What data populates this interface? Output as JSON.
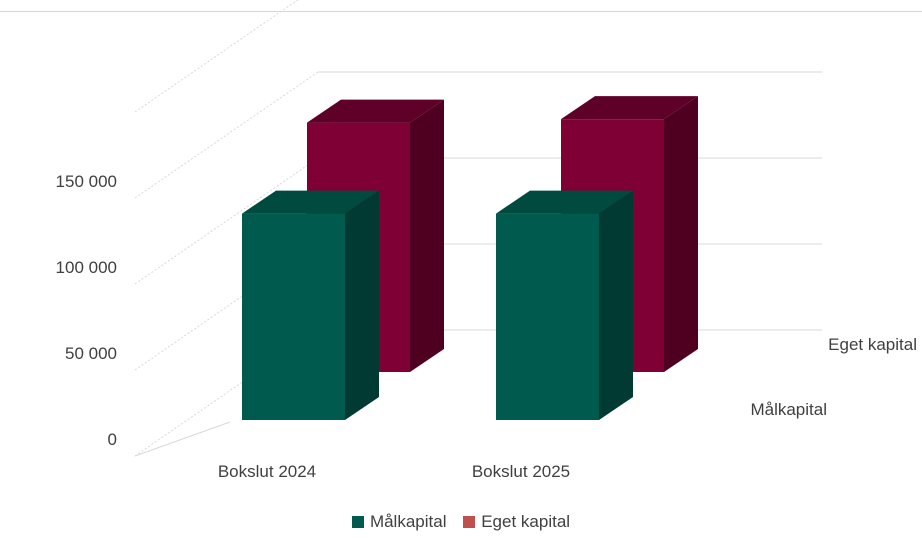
{
  "chart_data": {
    "type": "bar",
    "categories": [
      "Bokslut 2024",
      "Bokslut 2025"
    ],
    "series": [
      {
        "name": "Målkapital",
        "values": [
          120000,
          120000
        ],
        "color": "#005A4E",
        "color_top": "#004A3F",
        "color_side": "#003A32"
      },
      {
        "name": "Eget kapital",
        "values": [
          145000,
          147000
        ],
        "color": "#7E0035",
        "color_top": "#5E0027",
        "color_side": "#4F0020"
      }
    ],
    "y_ticks": [
      "0",
      "50 000",
      "100 000",
      "150 000"
    ],
    "ylim": [
      0,
      200000
    ],
    "grid": true,
    "legend": "bottom",
    "title": "",
    "xlabel": "",
    "ylabel": ""
  }
}
